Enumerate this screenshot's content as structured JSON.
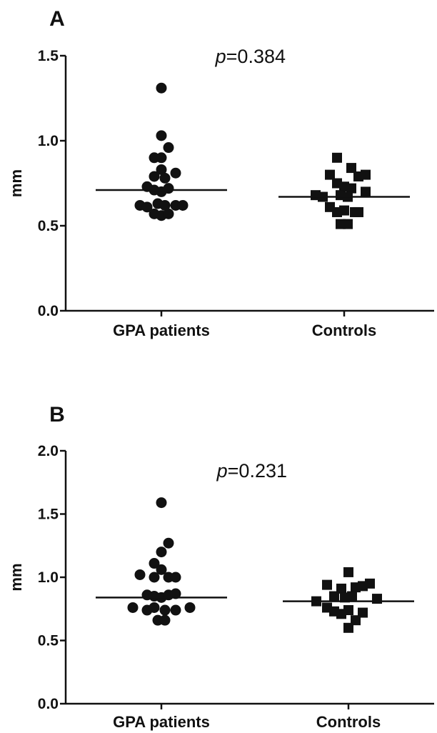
{
  "chart_data": [
    {
      "type": "scatter",
      "panel_label": "A",
      "ylabel": "mm",
      "ylim": [
        0,
        1.5
      ],
      "yticks": [
        "0.0",
        "0.5",
        "1.0",
        "1.5"
      ],
      "ytick_values": [
        0,
        0.5,
        1.0,
        1.5
      ],
      "categories": [
        "GPA patients",
        "Controls"
      ],
      "annotation": {
        "p_symbol": "p",
        "p_value": "=0.384"
      },
      "series": [
        {
          "category": "GPA patients",
          "marker": "circle",
          "mean": 0.71,
          "points": [
            {
              "dx": 0,
              "y": 1.31
            },
            {
              "dx": 0,
              "y": 1.03
            },
            {
              "dx": 1,
              "y": 0.96
            },
            {
              "dx": -1,
              "y": 0.9
            },
            {
              "dx": 0,
              "y": 0.9
            },
            {
              "dx": 0,
              "y": 0.83
            },
            {
              "dx": 2,
              "y": 0.81
            },
            {
              "dx": -1,
              "y": 0.79
            },
            {
              "dx": 0.5,
              "y": 0.78
            },
            {
              "dx": -2,
              "y": 0.73
            },
            {
              "dx": -1,
              "y": 0.71
            },
            {
              "dx": 0,
              "y": 0.7
            },
            {
              "dx": 1,
              "y": 0.72
            },
            {
              "dx": -3,
              "y": 0.62
            },
            {
              "dx": -2,
              "y": 0.61
            },
            {
              "dx": -0.5,
              "y": 0.63
            },
            {
              "dx": 0.5,
              "y": 0.62
            },
            {
              "dx": 2,
              "y": 0.62
            },
            {
              "dx": 3,
              "y": 0.62
            },
            {
              "dx": -1,
              "y": 0.57
            },
            {
              "dx": 0,
              "y": 0.56
            },
            {
              "dx": 1,
              "y": 0.57
            }
          ]
        },
        {
          "category": "Controls",
          "marker": "square",
          "mean": 0.67,
          "points": [
            {
              "dx": -1,
              "y": 0.9
            },
            {
              "dx": 1,
              "y": 0.84
            },
            {
              "dx": -2,
              "y": 0.8
            },
            {
              "dx": 2,
              "y": 0.79
            },
            {
              "dx": 3,
              "y": 0.8
            },
            {
              "dx": -1,
              "y": 0.75
            },
            {
              "dx": 0,
              "y": 0.73
            },
            {
              "dx": 1,
              "y": 0.72
            },
            {
              "dx": -4,
              "y": 0.68
            },
            {
              "dx": -3,
              "y": 0.67
            },
            {
              "dx": -0.5,
              "y": 0.68
            },
            {
              "dx": 0.5,
              "y": 0.67
            },
            {
              "dx": 3,
              "y": 0.7
            },
            {
              "dx": -2,
              "y": 0.61
            },
            {
              "dx": -1,
              "y": 0.58
            },
            {
              "dx": 0,
              "y": 0.59
            },
            {
              "dx": 1.5,
              "y": 0.58
            },
            {
              "dx": 2,
              "y": 0.58
            },
            {
              "dx": -0.5,
              "y": 0.51
            },
            {
              "dx": 0.5,
              "y": 0.51
            }
          ]
        }
      ]
    },
    {
      "type": "scatter",
      "panel_label": "B",
      "ylabel": "mm",
      "ylim": [
        0,
        2.0
      ],
      "yticks": [
        "0.0",
        "0.5",
        "1.0",
        "1.5",
        "2.0"
      ],
      "ytick_values": [
        0,
        0.5,
        1.0,
        1.5,
        2.0
      ],
      "categories": [
        "GPA patients",
        "Controls"
      ],
      "annotation": {
        "p_symbol": "p",
        "p_value": "=0.231"
      },
      "series": [
        {
          "category": "GPA patients",
          "marker": "circle",
          "mean": 0.84,
          "points": [
            {
              "dx": 0,
              "y": 1.59
            },
            {
              "dx": 1,
              "y": 1.27
            },
            {
              "dx": 0,
              "y": 1.2
            },
            {
              "dx": -1,
              "y": 1.11
            },
            {
              "dx": 0,
              "y": 1.06
            },
            {
              "dx": -3,
              "y": 1.02
            },
            {
              "dx": -1,
              "y": 1.0
            },
            {
              "dx": 1,
              "y": 1.0
            },
            {
              "dx": 2,
              "y": 1.0
            },
            {
              "dx": -2,
              "y": 0.86
            },
            {
              "dx": -1,
              "y": 0.85
            },
            {
              "dx": 0,
              "y": 0.84
            },
            {
              "dx": 1,
              "y": 0.86
            },
            {
              "dx": 2,
              "y": 0.87
            },
            {
              "dx": -4,
              "y": 0.76
            },
            {
              "dx": -2,
              "y": 0.74
            },
            {
              "dx": -1,
              "y": 0.76
            },
            {
              "dx": 0.5,
              "y": 0.74
            },
            {
              "dx": 2,
              "y": 0.74
            },
            {
              "dx": 4,
              "y": 0.76
            },
            {
              "dx": -0.5,
              "y": 0.66
            },
            {
              "dx": 0.5,
              "y": 0.66
            }
          ]
        },
        {
          "category": "Controls",
          "marker": "square",
          "mean": 0.81,
          "points": [
            {
              "dx": 0,
              "y": 1.04
            },
            {
              "dx": -3,
              "y": 0.94
            },
            {
              "dx": 3,
              "y": 0.95
            },
            {
              "dx": -1,
              "y": 0.91
            },
            {
              "dx": 1,
              "y": 0.92
            },
            {
              "dx": 2,
              "y": 0.93
            },
            {
              "dx": -2,
              "y": 0.85
            },
            {
              "dx": -0.5,
              "y": 0.84
            },
            {
              "dx": 0.5,
              "y": 0.85
            },
            {
              "dx": -4.5,
              "y": 0.81
            },
            {
              "dx": 4,
              "y": 0.83
            },
            {
              "dx": -3,
              "y": 0.76
            },
            {
              "dx": -2,
              "y": 0.73
            },
            {
              "dx": 0,
              "y": 0.74
            },
            {
              "dx": 2,
              "y": 0.72
            },
            {
              "dx": -1,
              "y": 0.71
            },
            {
              "dx": 1,
              "y": 0.66
            },
            {
              "dx": 0,
              "y": 0.6
            }
          ]
        }
      ]
    }
  ]
}
